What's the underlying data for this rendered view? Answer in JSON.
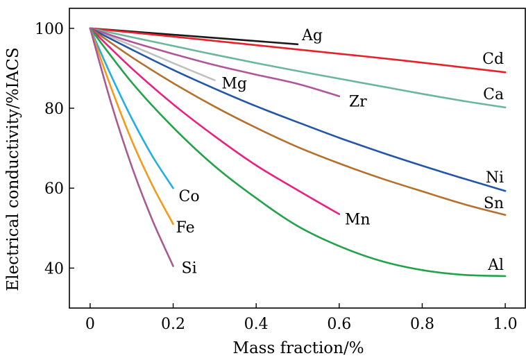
{
  "chart_data": {
    "type": "line",
    "title": "",
    "xlabel": "Mass fraction/%",
    "ylabel": "Electrical conductivity/%IACS",
    "xlim": [
      -0.05,
      1.05
    ],
    "ylim": [
      30,
      105
    ],
    "xticks": [
      "0",
      "0.2",
      "0.4",
      "0.6",
      "0.8",
      "1.0"
    ],
    "yticks": [
      "40",
      "60",
      "80",
      "100"
    ],
    "grid": false,
    "legend": "none (series labelled at line ends)",
    "series": [
      {
        "name": "Ag",
        "color": "#1a1a1a",
        "x": [
          0,
          0.25,
          0.5
        ],
        "y": [
          100,
          98,
          96
        ]
      },
      {
        "name": "Cd",
        "color": "#e8202a",
        "x": [
          0,
          0.25,
          0.5,
          0.75,
          1.0
        ],
        "y": [
          100,
          97.4,
          94.7,
          92.0,
          89.0
        ]
      },
      {
        "name": "Ca",
        "color": "#6ab79a",
        "x": [
          0,
          0.1,
          0.2,
          0.3,
          0.4,
          0.5,
          0.6,
          0.7,
          0.8,
          0.9,
          1.0
        ],
        "y": [
          100,
          97.8,
          95.6,
          93.4,
          91.3,
          89.3,
          87.4,
          85.5,
          83.6,
          81.8,
          80.2
        ]
      },
      {
        "name": "Mg",
        "color": "#c0c0c0",
        "x": [
          0,
          0.1,
          0.2,
          0.3
        ],
        "y": [
          100,
          95.7,
          91.3,
          87.0
        ]
      },
      {
        "name": "Zr",
        "color": "#b0559c",
        "x": [
          0,
          0.1,
          0.2,
          0.3,
          0.4,
          0.5,
          0.6
        ],
        "y": [
          100,
          96.6,
          93.6,
          90.8,
          88.4,
          86.1,
          83.0
        ]
      },
      {
        "name": "Ni",
        "color": "#2357a6",
        "x": [
          0,
          0.1,
          0.2,
          0.3,
          0.4,
          0.5,
          0.6,
          0.7,
          0.8,
          0.9,
          1.0
        ],
        "y": [
          100,
          94.7,
          89.6,
          84.9,
          80.5,
          76.5,
          72.6,
          69.0,
          65.6,
          62.4,
          59.3
        ]
      },
      {
        "name": "Sn",
        "color": "#b5702e",
        "x": [
          0,
          0.1,
          0.2,
          0.3,
          0.4,
          0.5,
          0.6,
          0.7,
          0.8,
          0.9,
          1.0
        ],
        "y": [
          100,
          92.8,
          86.3,
          80.4,
          75.1,
          70.3,
          66.2,
          62.5,
          59.2,
          56.0,
          53.3
        ]
      },
      {
        "name": "Mn",
        "color": "#e8217f",
        "x": [
          0,
          0.1,
          0.2,
          0.3,
          0.4,
          0.5,
          0.6
        ],
        "y": [
          100,
          90.0,
          81.0,
          73.0,
          65.7,
          59.5,
          53.5
        ]
      },
      {
        "name": "Al",
        "color": "#22a34a",
        "x": [
          0,
          0.1,
          0.2,
          0.3,
          0.4,
          0.5,
          0.6,
          0.7,
          0.8,
          0.9,
          1.0
        ],
        "y": [
          100,
          86.5,
          75.2,
          65.5,
          57.5,
          50.5,
          45.5,
          41.8,
          39.5,
          38.3,
          38.0
        ]
      },
      {
        "name": "Co",
        "color": "#22aee4",
        "x": [
          0,
          0.05,
          0.1,
          0.15,
          0.2
        ],
        "y": [
          100,
          88.3,
          77.5,
          68.0,
          60.0
        ]
      },
      {
        "name": "Fe",
        "color": "#f39a1c",
        "x": [
          0,
          0.05,
          0.1,
          0.15,
          0.2
        ],
        "y": [
          100,
          85.3,
          72.0,
          60.7,
          51.0
        ]
      },
      {
        "name": "Si",
        "color": "#a85a93",
        "x": [
          0,
          0.05,
          0.1,
          0.15,
          0.2
        ],
        "y": [
          100,
          81.5,
          65.5,
          52.0,
          40.5
        ]
      }
    ]
  }
}
